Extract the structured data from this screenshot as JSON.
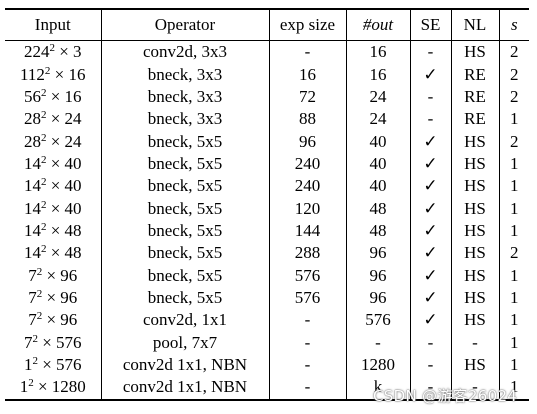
{
  "header": {
    "input": "Input",
    "operator": "Operator",
    "exp_size": "exp size",
    "out": "#out",
    "se": "SE",
    "nl": "NL",
    "s": "s"
  },
  "rows": [
    {
      "base": "224",
      "exp": "2",
      "ch": "× 3",
      "operator": "conv2d, 3x3",
      "exp_size": "-",
      "out": "16",
      "se": "-",
      "nl": "HS",
      "s": "2"
    },
    {
      "base": "112",
      "exp": "2",
      "ch": "× 16",
      "operator": "bneck, 3x3",
      "exp_size": "16",
      "out": "16",
      "se": "✓",
      "nl": "RE",
      "s": "2"
    },
    {
      "base": "56",
      "exp": "2",
      "ch": "× 16",
      "operator": "bneck, 3x3",
      "exp_size": "72",
      "out": "24",
      "se": "-",
      "nl": "RE",
      "s": "2"
    },
    {
      "base": "28",
      "exp": "2",
      "ch": "× 24",
      "operator": "bneck, 3x3",
      "exp_size": "88",
      "out": "24",
      "se": "-",
      "nl": "RE",
      "s": "1"
    },
    {
      "base": "28",
      "exp": "2",
      "ch": "× 24",
      "operator": "bneck, 5x5",
      "exp_size": "96",
      "out": "40",
      "se": "✓",
      "nl": "HS",
      "s": "2"
    },
    {
      "base": "14",
      "exp": "2",
      "ch": "× 40",
      "operator": "bneck, 5x5",
      "exp_size": "240",
      "out": "40",
      "se": "✓",
      "nl": "HS",
      "s": "1"
    },
    {
      "base": "14",
      "exp": "2",
      "ch": "× 40",
      "operator": "bneck, 5x5",
      "exp_size": "240",
      "out": "40",
      "se": "✓",
      "nl": "HS",
      "s": "1"
    },
    {
      "base": "14",
      "exp": "2",
      "ch": "× 40",
      "operator": "bneck, 5x5",
      "exp_size": "120",
      "out": "48",
      "se": "✓",
      "nl": "HS",
      "s": "1"
    },
    {
      "base": "14",
      "exp": "2",
      "ch": "× 48",
      "operator": "bneck, 5x5",
      "exp_size": "144",
      "out": "48",
      "se": "✓",
      "nl": "HS",
      "s": "1"
    },
    {
      "base": "14",
      "exp": "2",
      "ch": "× 48",
      "operator": "bneck, 5x5",
      "exp_size": "288",
      "out": "96",
      "se": "✓",
      "nl": "HS",
      "s": "2"
    },
    {
      "base": "7",
      "exp": "2",
      "ch": "× 96",
      "operator": "bneck, 5x5",
      "exp_size": "576",
      "out": "96",
      "se": "✓",
      "nl": "HS",
      "s": "1"
    },
    {
      "base": "7",
      "exp": "2",
      "ch": "× 96",
      "operator": "bneck, 5x5",
      "exp_size": "576",
      "out": "96",
      "se": "✓",
      "nl": "HS",
      "s": "1"
    },
    {
      "base": "7",
      "exp": "2",
      "ch": "× 96",
      "operator": "conv2d, 1x1",
      "exp_size": "-",
      "out": "576",
      "se": "✓",
      "nl": "HS",
      "s": "1"
    },
    {
      "base": "7",
      "exp": "2",
      "ch": "× 576",
      "operator": "pool, 7x7",
      "exp_size": "-",
      "out": "-",
      "se": "-",
      "nl": "-",
      "s": "1"
    },
    {
      "base": "1",
      "exp": "2",
      "ch": "× 576",
      "operator": "conv2d 1x1, NBN",
      "exp_size": "-",
      "out": "1280",
      "se": "-",
      "nl": "HS",
      "s": "1"
    },
    {
      "base": "1",
      "exp": "2",
      "ch": "× 1280",
      "operator": "conv2d 1x1, NBN",
      "exp_size": "-",
      "out": "k",
      "se": "-",
      "nl": "-",
      "s": "1"
    }
  ],
  "watermark": "CSDN @游客26024"
}
